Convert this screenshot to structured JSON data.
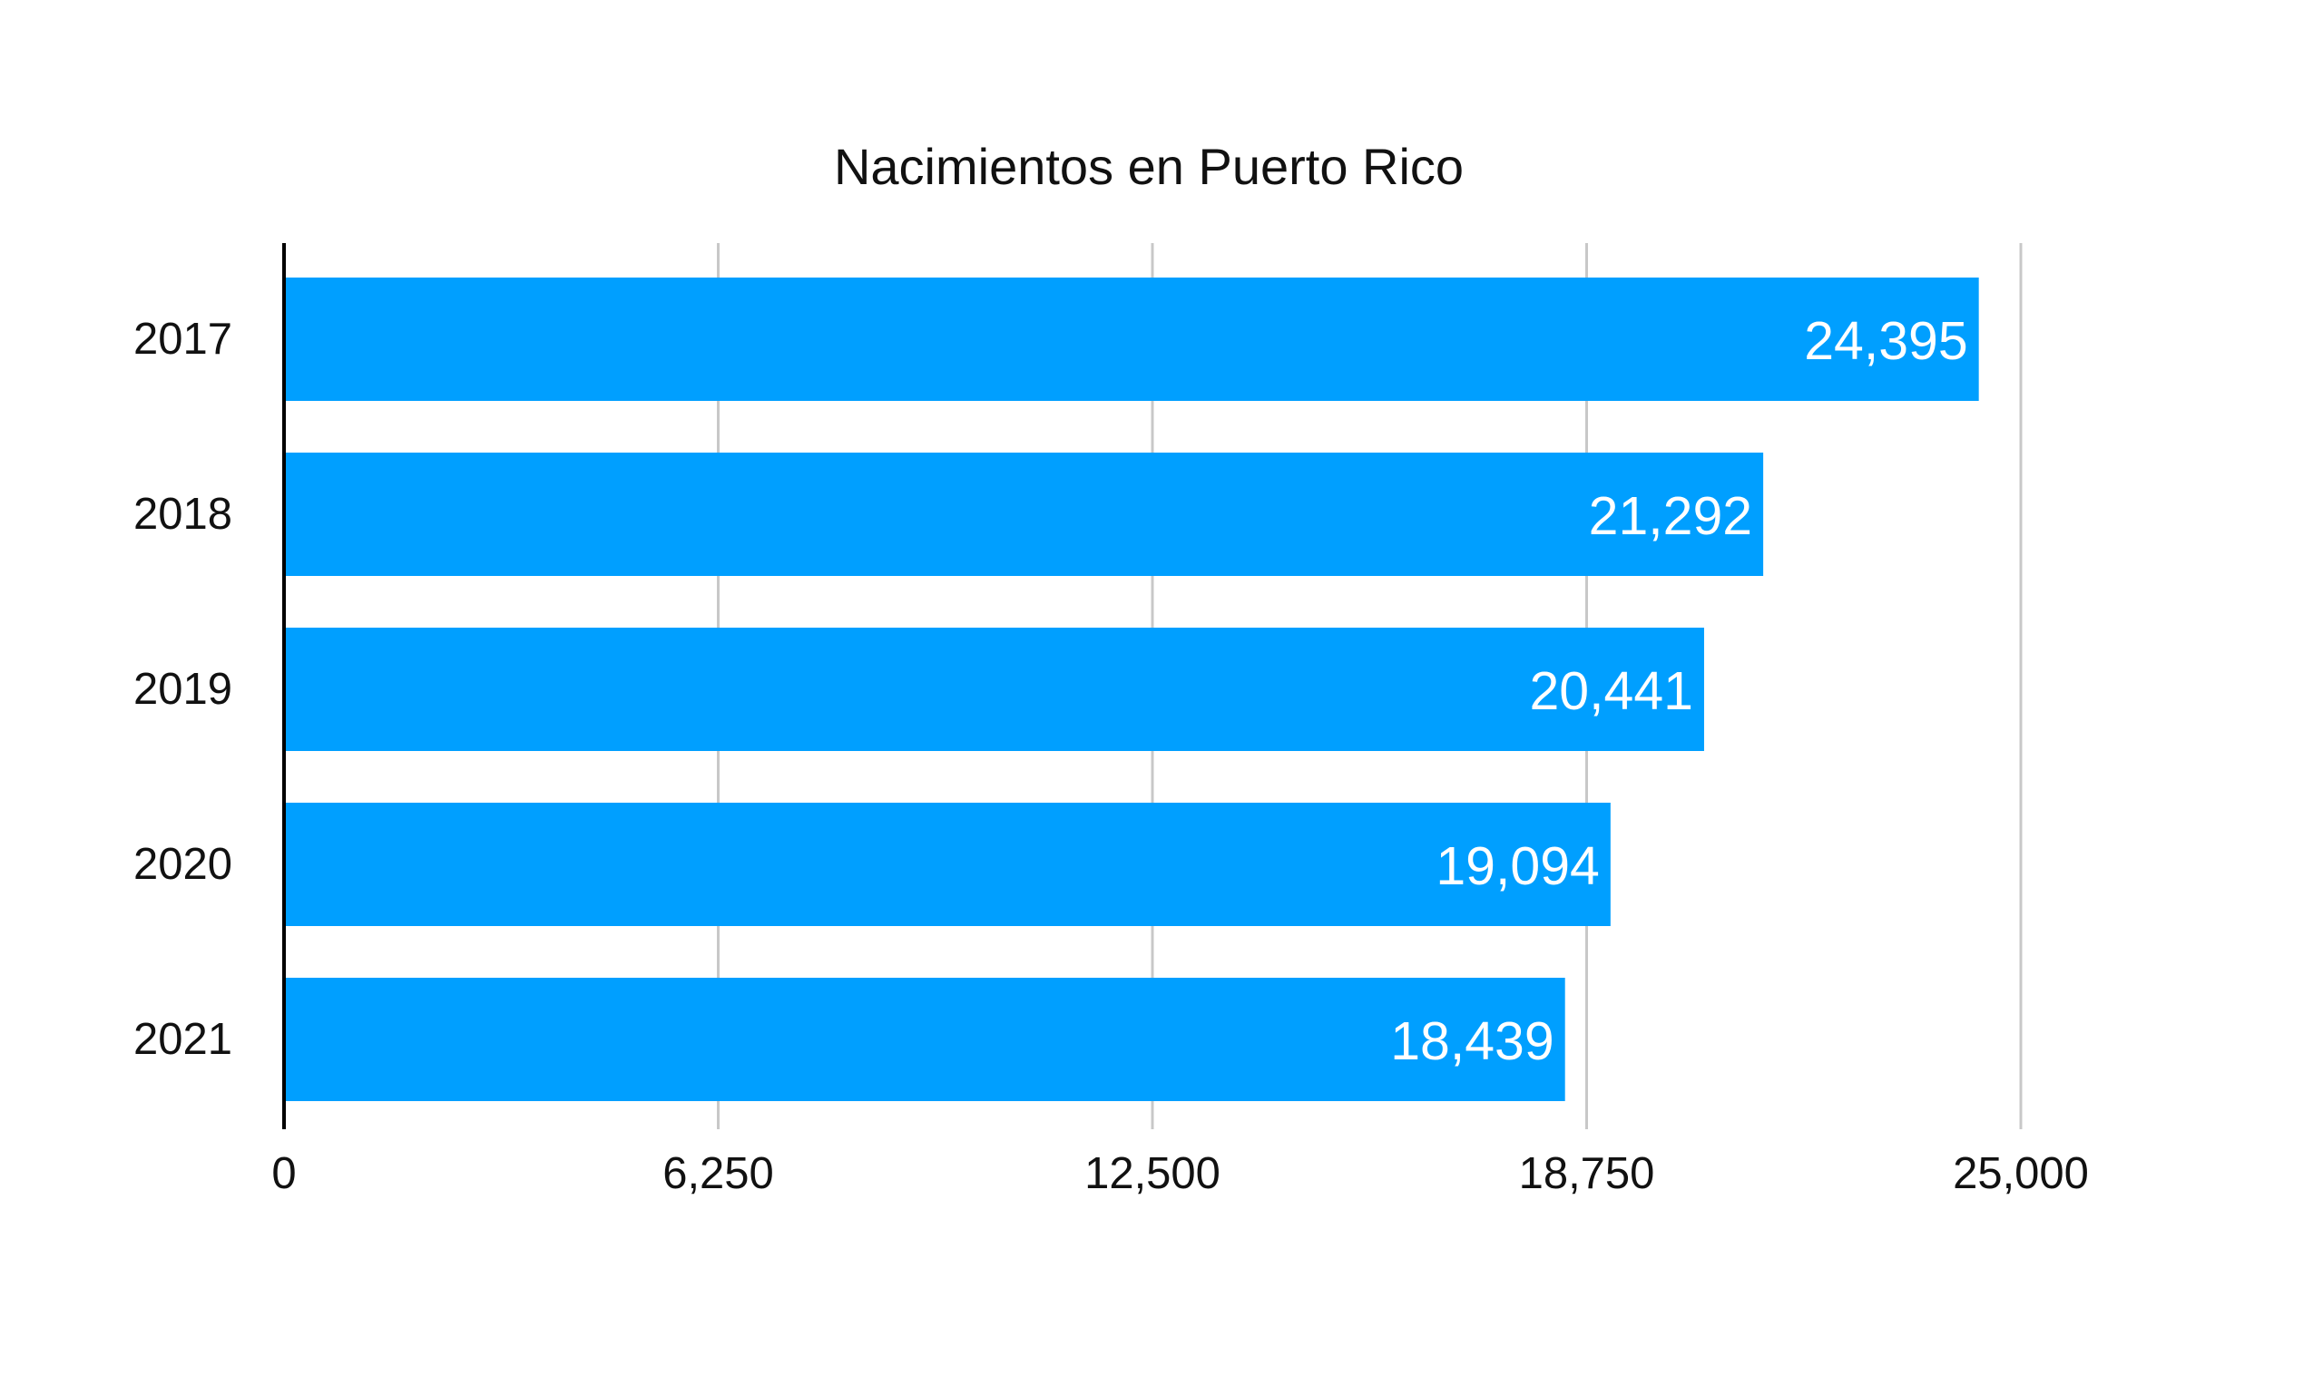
{
  "chart_data": {
    "type": "bar",
    "orientation": "horizontal",
    "title": "Nacimientos en Puerto Rico",
    "xlabel": "",
    "ylabel": "",
    "categories": [
      "2017",
      "2018",
      "2019",
      "2020",
      "2021"
    ],
    "values": [
      24395,
      21292,
      20441,
      19094,
      18439
    ],
    "data_labels": [
      "24,395",
      "21,292",
      "20,441",
      "19,094",
      "18,439"
    ],
    "xlim": [
      0,
      25000
    ],
    "xticks": [
      0,
      6250,
      12500,
      18750,
      25000
    ],
    "xtick_labels": [
      "0",
      "6,250",
      "12,500",
      "18,750",
      "25,000"
    ],
    "grid": "vertical",
    "legend": "none",
    "bar_color": "#009FFF",
    "gridline_color": "#C8C8C8",
    "axis_color": "#000000",
    "label_color": "#FFFFFF"
  }
}
